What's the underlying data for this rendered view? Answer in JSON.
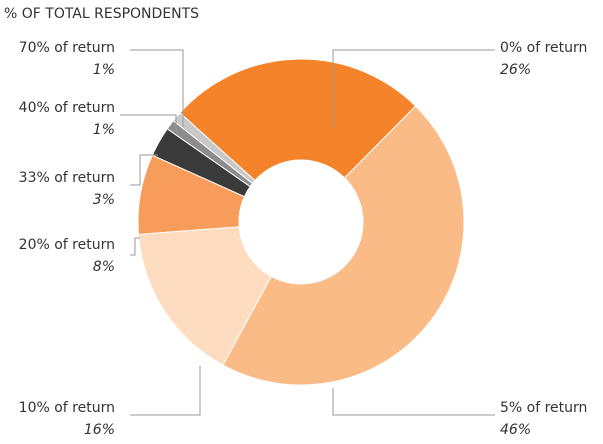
{
  "chart_data": {
    "type": "pie",
    "title": "% OF TOTAL RESPONDENTS",
    "categories": [
      "0% of return",
      "5% of return",
      "10% of return",
      "20% of return",
      "33% of return",
      "40% of return",
      "70% of return"
    ],
    "values": [
      26,
      46,
      16,
      8,
      3,
      1,
      1
    ],
    "value_labels": [
      "26%",
      "46%",
      "16%",
      "8%",
      "3%",
      "1%",
      "1%"
    ],
    "colors": [
      "#f5832a",
      "#fbbb86",
      "#fddcbf",
      "#f79c5a",
      "#3a3a3a",
      "#8c8c8c",
      "#c8c8c8"
    ],
    "donut": true
  }
}
